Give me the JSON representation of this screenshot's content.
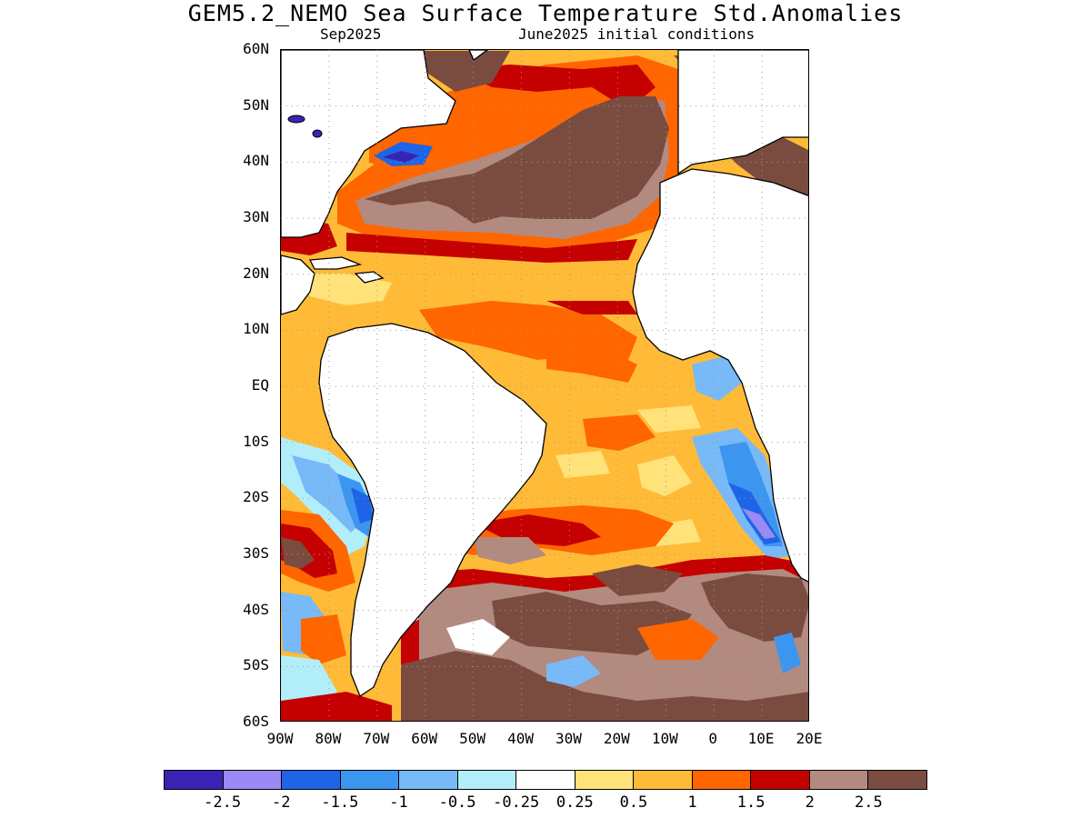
{
  "title": "GEM5.2_NEMO Sea Surface Temperature Std.Anomalies",
  "subtitle_left": "Sep2025",
  "subtitle_right": "June2025 initial conditions",
  "lat_labels": [
    "60N",
    "50N",
    "40N",
    "30N",
    "20N",
    "10N",
    "EQ",
    "10S",
    "20S",
    "30S",
    "40S",
    "50S",
    "60S"
  ],
  "lon_labels": [
    "90W",
    "80W",
    "70W",
    "60W",
    "50W",
    "40W",
    "30W",
    "20W",
    "10W",
    "0",
    "10E",
    "20E"
  ],
  "colorbar": {
    "colors": [
      "#3a23b4",
      "#9a8af5",
      "#1e64e6",
      "#3c96f0",
      "#78b9f7",
      "#b2eefa",
      "#ffffff",
      "#ffe27a",
      "#ffbb37",
      "#ff6600",
      "#c50000",
      "#b38a80",
      "#7a4c3f"
    ],
    "labels": [
      "-2.5",
      "-2",
      "-1.5",
      "-1",
      "-0.5",
      "-0.25",
      "0.25",
      "0.5",
      "1",
      "1.5",
      "2",
      "2.5"
    ]
  },
  "map": {
    "ocean_base_color": "#ffbb37",
    "land_color": "#ffffff",
    "grid_color": "#9a9a9a",
    "coast_color": "#000000"
  }
}
